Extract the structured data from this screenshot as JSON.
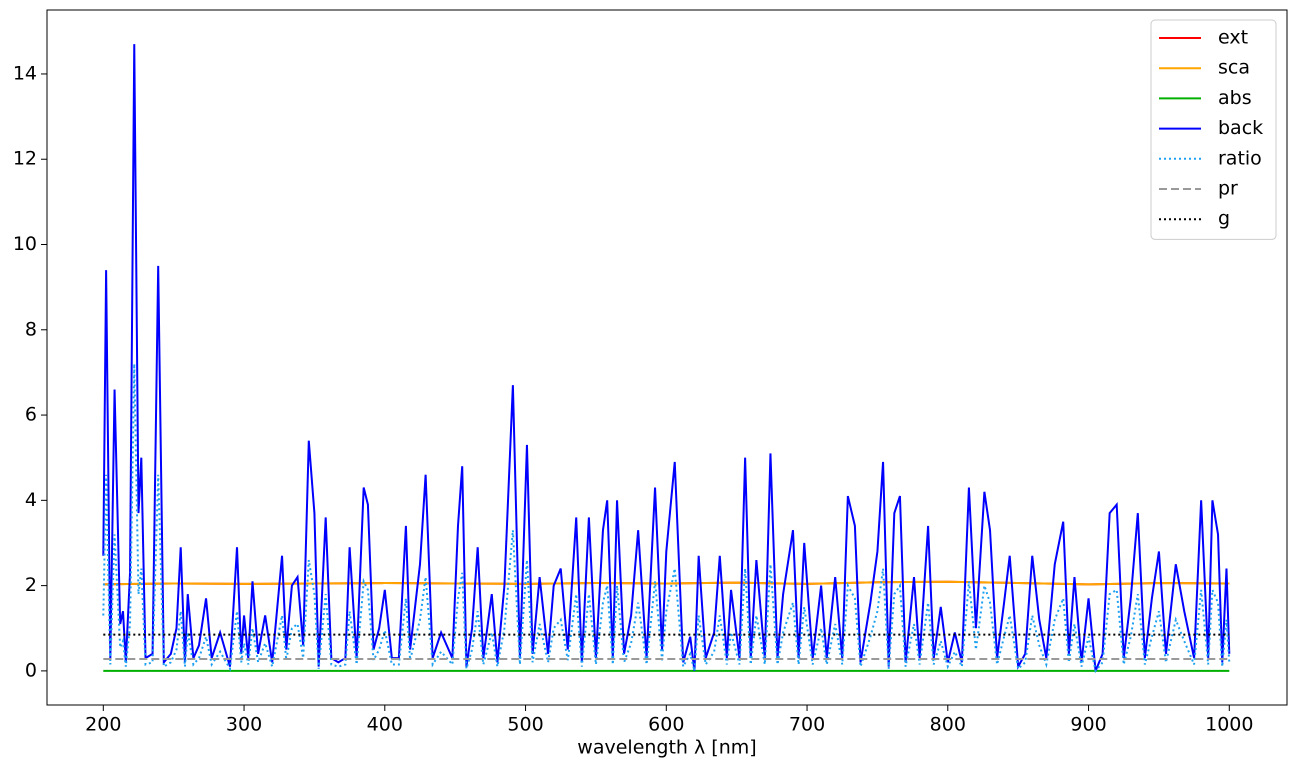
{
  "chart_data": {
    "type": "line",
    "xlabel": "wavelength λ [nm]",
    "xlim": [
      160,
      1041
    ],
    "ylim": [
      -0.8,
      15.5
    ],
    "xticks": [
      200,
      300,
      400,
      500,
      600,
      700,
      800,
      900,
      1000
    ],
    "yticks": [
      0,
      2,
      4,
      6,
      8,
      10,
      12,
      14
    ],
    "legend": "upper right",
    "x": [
      200,
      202,
      205,
      208,
      212,
      214,
      216,
      219,
      222,
      225,
      227,
      230,
      235,
      239,
      243,
      248,
      252,
      255,
      258,
      260,
      264,
      268,
      273,
      277,
      283,
      290,
      295,
      298,
      300,
      303,
      306,
      310,
      315,
      320,
      327,
      330,
      334,
      338,
      342,
      346,
      350,
      353,
      358,
      362,
      367,
      372,
      375,
      380,
      385,
      388,
      392,
      396,
      400,
      405,
      410,
      415,
      418,
      425,
      429,
      434,
      440,
      448,
      452,
      455,
      458,
      462,
      466,
      470,
      476,
      480,
      485,
      491,
      496,
      501,
      505,
      510,
      516,
      520,
      525,
      530,
      536,
      540,
      545,
      550,
      555,
      558,
      562,
      565,
      570,
      575,
      580,
      586,
      592,
      597,
      600,
      606,
      612,
      617,
      620,
      623,
      628,
      634,
      638,
      643,
      646,
      652,
      656,
      660,
      664,
      670,
      674,
      679,
      683,
      690,
      694,
      698,
      704,
      710,
      714,
      720,
      725,
      729,
      734,
      738,
      745,
      750,
      754,
      758,
      762,
      766,
      770,
      776,
      780,
      786,
      790,
      795,
      800,
      805,
      810,
      815,
      820,
      826,
      830,
      835,
      840,
      844,
      850,
      855,
      860,
      865,
      870,
      876,
      882,
      886,
      890,
      895,
      900,
      905,
      910,
      915,
      920,
      925,
      930,
      935,
      940,
      945,
      950,
      955,
      962,
      968,
      975,
      980,
      985,
      988,
      992,
      995,
      998,
      1000
    ],
    "series": [
      {
        "name": "ext",
        "color": "#ff0000",
        "dash": "solid",
        "x": [
          200,
          250,
          300,
          350,
          400,
          450,
          500,
          550,
          600,
          650,
          700,
          750,
          800,
          850,
          900,
          950,
          1000
        ],
        "values": [
          2.03,
          2.05,
          2.04,
          2.05,
          2.06,
          2.05,
          2.04,
          2.06,
          2.05,
          2.07,
          2.04,
          2.08,
          2.09,
          2.06,
          2.03,
          2.06,
          2.05
        ]
      },
      {
        "name": "sca",
        "color": "#ffa500",
        "dash": "solid",
        "x": [
          200,
          250,
          300,
          350,
          400,
          450,
          500,
          550,
          600,
          650,
          700,
          750,
          800,
          850,
          900,
          950,
          1000
        ],
        "values": [
          2.03,
          2.05,
          2.04,
          2.05,
          2.06,
          2.05,
          2.04,
          2.06,
          2.05,
          2.07,
          2.04,
          2.08,
          2.09,
          2.06,
          2.03,
          2.06,
          2.05
        ]
      },
      {
        "name": "abs",
        "color": "#00b000",
        "dash": "solid",
        "x": [
          200,
          1000
        ],
        "values": [
          0,
          0
        ]
      },
      {
        "name": "back",
        "color": "#0000ff",
        "dash": "solid",
        "values": [
          2.7,
          9.4,
          0.3,
          6.6,
          1.1,
          1.4,
          0.2,
          2.3,
          14.7,
          3.7,
          5.0,
          0.3,
          0.4,
          9.5,
          0.2,
          0.4,
          1.0,
          2.9,
          0.2,
          1.8,
          0.3,
          0.6,
          1.7,
          0.3,
          0.9,
          0.1,
          2.9,
          0.4,
          1.3,
          0.3,
          2.1,
          0.4,
          1.3,
          0.2,
          2.7,
          0.5,
          2.0,
          2.2,
          0.6,
          5.4,
          3.7,
          0.1,
          3.6,
          0.3,
          0.2,
          0.3,
          2.9,
          0.3,
          4.3,
          3.9,
          0.5,
          1.0,
          1.9,
          0.3,
          0.3,
          3.4,
          0.5,
          2.5,
          4.6,
          0.3,
          0.9,
          0.3,
          3.4,
          4.8,
          0.1,
          1.0,
          2.9,
          0.3,
          1.8,
          0.2,
          2.0,
          6.7,
          0.3,
          5.3,
          0.4,
          2.2,
          0.4,
          2.0,
          2.4,
          0.5,
          3.6,
          0.2,
          3.6,
          0.3,
          3.3,
          4.0,
          0.3,
          4.0,
          0.4,
          1.3,
          3.3,
          0.3,
          4.3,
          0.5,
          2.8,
          4.9,
          0.2,
          0.8,
          0.0,
          2.7,
          0.3,
          0.9,
          2.7,
          0.3,
          1.9,
          0.3,
          5.0,
          0.3,
          2.6,
          0.3,
          5.1,
          0.3,
          1.8,
          3.3,
          0.3,
          3.0,
          0.3,
          2.0,
          0.3,
          2.2,
          0.3,
          4.1,
          3.4,
          0.2,
          1.6,
          2.8,
          4.9,
          0.1,
          3.7,
          4.1,
          0.2,
          2.2,
          0.3,
          3.4,
          0.3,
          1.5,
          0.2,
          0.9,
          0.2,
          4.3,
          1.0,
          4.2,
          3.3,
          0.3,
          1.6,
          2.7,
          0.1,
          0.4,
          2.7,
          1.2,
          0.3,
          2.5,
          3.5,
          0.4,
          2.2,
          0.2,
          1.7,
          0.0,
          0.4,
          3.7,
          3.9,
          0.3,
          1.7,
          3.7,
          0.3,
          1.7,
          2.8,
          0.4,
          2.5,
          1.4,
          0.3,
          4.0,
          0.3,
          4.0,
          3.2,
          0.2,
          2.4,
          0.4
        ]
      },
      {
        "name": "ratio",
        "color": "#1ea0f0",
        "dash": "dotted",
        "values": [
          1.3,
          4.6,
          0.15,
          3.2,
          0.55,
          0.7,
          0.1,
          1.1,
          7.2,
          1.8,
          2.4,
          0.15,
          0.2,
          4.6,
          0.1,
          0.2,
          0.5,
          1.4,
          0.1,
          0.9,
          0.15,
          0.3,
          0.8,
          0.15,
          0.45,
          0.05,
          1.4,
          0.2,
          0.65,
          0.15,
          1.0,
          0.2,
          0.65,
          0.1,
          1.3,
          0.25,
          1.0,
          1.1,
          0.3,
          2.6,
          1.8,
          0.05,
          1.8,
          0.15,
          0.1,
          0.15,
          1.4,
          0.15,
          2.1,
          1.9,
          0.25,
          0.5,
          0.95,
          0.15,
          0.15,
          1.7,
          0.25,
          1.2,
          2.2,
          0.15,
          0.45,
          0.15,
          1.7,
          2.3,
          0.05,
          0.5,
          1.4,
          0.15,
          0.9,
          0.1,
          1.0,
          3.3,
          0.15,
          2.6,
          0.2,
          1.1,
          0.2,
          1.0,
          1.2,
          0.25,
          1.8,
          0.1,
          1.8,
          0.15,
          1.6,
          2.0,
          0.15,
          2.0,
          0.2,
          0.65,
          1.6,
          0.15,
          2.1,
          0.25,
          1.4,
          2.4,
          0.1,
          0.4,
          0.0,
          1.3,
          0.15,
          0.45,
          1.3,
          0.15,
          0.9,
          0.15,
          2.4,
          0.15,
          1.3,
          0.15,
          2.5,
          0.15,
          0.9,
          1.6,
          0.15,
          1.5,
          0.15,
          1.0,
          0.15,
          1.1,
          0.15,
          2.0,
          1.7,
          0.1,
          0.8,
          1.4,
          2.4,
          0.05,
          1.8,
          2.0,
          0.1,
          1.1,
          0.15,
          1.6,
          0.15,
          0.7,
          0.1,
          0.45,
          0.1,
          2.1,
          0.5,
          2.0,
          1.6,
          0.15,
          0.8,
          1.3,
          0.05,
          0.2,
          1.3,
          0.6,
          0.15,
          1.2,
          1.7,
          0.2,
          1.1,
          0.1,
          0.8,
          0.0,
          0.2,
          1.8,
          1.9,
          0.15,
          0.8,
          1.8,
          0.15,
          0.8,
          1.4,
          0.2,
          1.2,
          0.7,
          0.15,
          1.9,
          0.15,
          1.9,
          1.6,
          0.1,
          1.2,
          0.2
        ]
      },
      {
        "name": "pr",
        "color": "#999999",
        "dash": "dashed",
        "x": [
          200,
          1000
        ],
        "values": [
          0.28,
          0.28
        ]
      },
      {
        "name": "g",
        "color": "#000000",
        "dash": "dotted",
        "x": [
          200,
          1000
        ],
        "values": [
          0.85,
          0.85
        ]
      }
    ]
  }
}
